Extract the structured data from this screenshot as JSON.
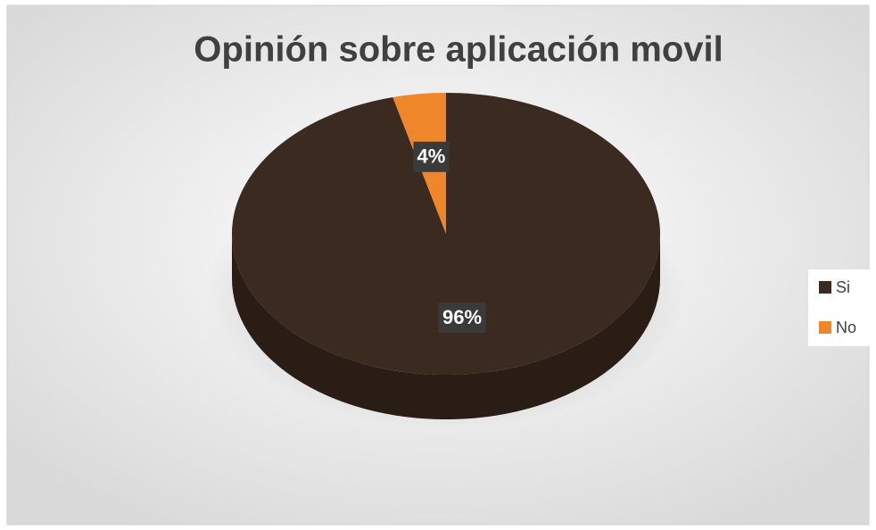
{
  "chart_data": {
    "type": "pie",
    "title": "Opinión sobre aplicación movil",
    "categories": [
      "Si",
      "No"
    ],
    "values": [
      96,
      4
    ],
    "value_labels": [
      "96%",
      "4%"
    ],
    "colors": [
      "#3b2a20",
      "#f0862a"
    ],
    "legend": "right"
  }
}
